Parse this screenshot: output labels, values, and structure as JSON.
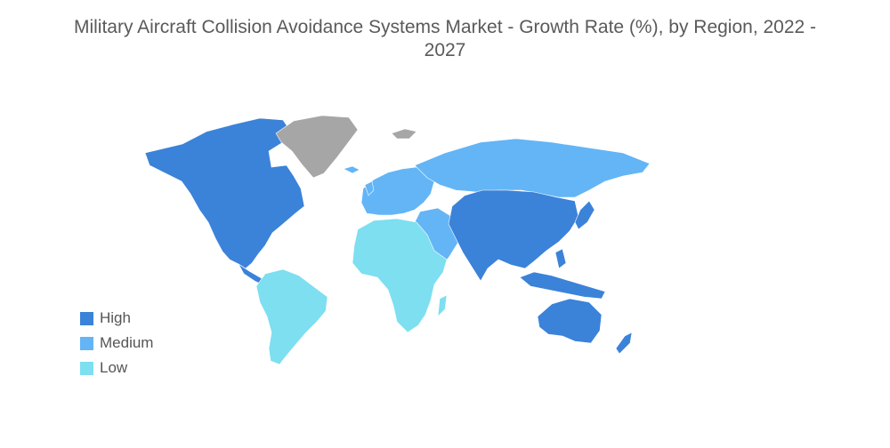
{
  "title_line1": "Military Aircraft Collision Avoidance Systems Market - Growth Rate (%), by Region, 2022 -",
  "title_line2": "2027",
  "legend": [
    {
      "label": "High",
      "color": "#3b82d9"
    },
    {
      "label": "Medium",
      "color": "#63b5f6"
    },
    {
      "label": "Low",
      "color": "#7ddff0"
    }
  ],
  "no_data_color": "#a6a6a6",
  "regions": [
    {
      "name": "North America",
      "level": "High"
    },
    {
      "name": "Greenland",
      "level": "No data"
    },
    {
      "name": "South America",
      "level": "Low"
    },
    {
      "name": "Europe",
      "level": "Medium"
    },
    {
      "name": "Russia",
      "level": "Medium"
    },
    {
      "name": "Middle East",
      "level": "Medium"
    },
    {
      "name": "Africa",
      "level": "Low"
    },
    {
      "name": "Asia-Pacific",
      "level": "High"
    },
    {
      "name": "Australia",
      "level": "High"
    }
  ]
}
